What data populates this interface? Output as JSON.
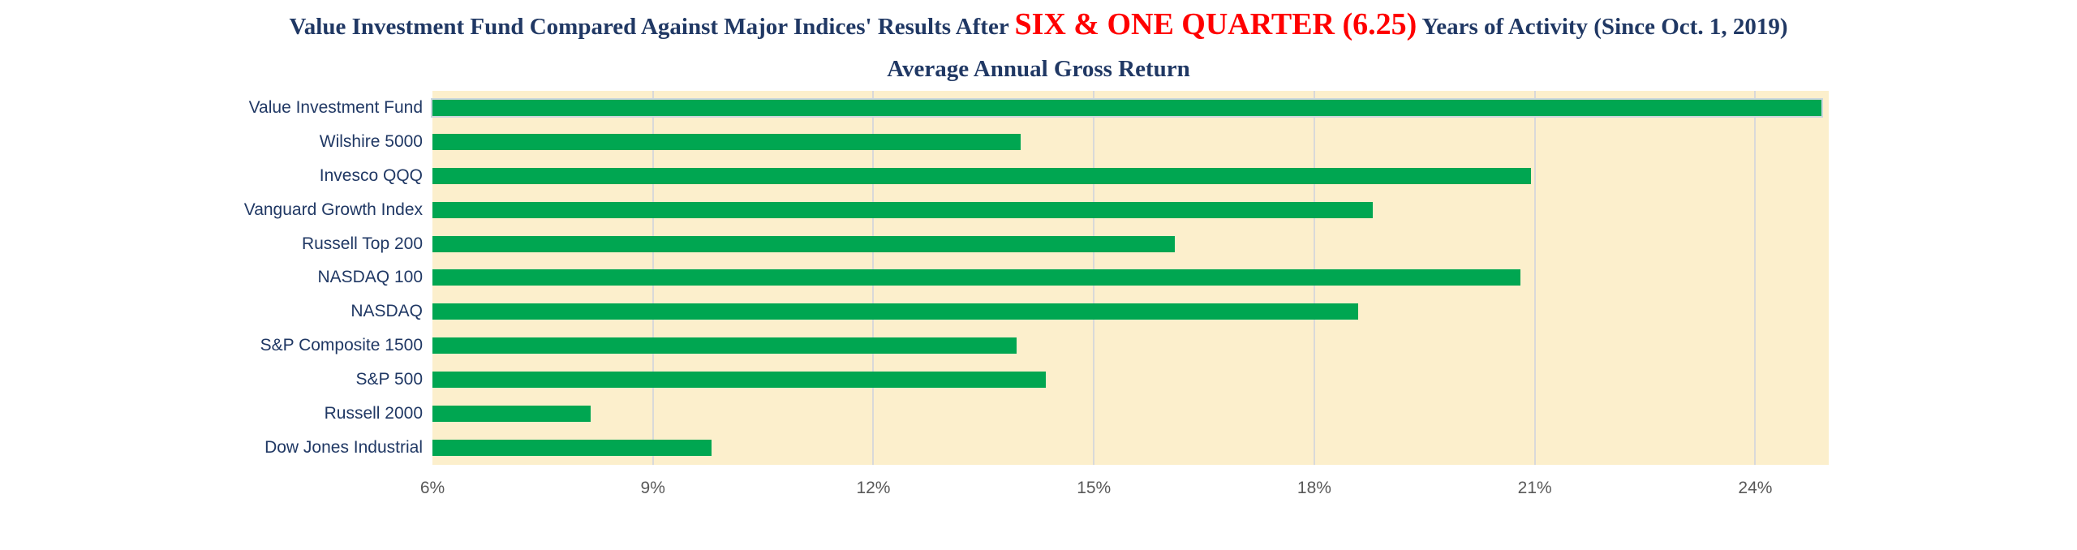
{
  "title": {
    "prefix": "Value Investment Fund Compared Against Major Indices' Results After ",
    "highlight": "SIX & ONE QUARTER (6.25)",
    "suffix": " Years of Activity (Since Oct. 1, 2019)",
    "subtitle": "Average Annual Gross Return"
  },
  "colors": {
    "title_navy": "#203864",
    "highlight_red": "#FF0000",
    "bar_green": "#00A651",
    "first_bar_outline": "#CBD6DD",
    "plot_background": "#FCEFCC",
    "gridline": "#D9D9D9",
    "axis_text_gray": "#595959",
    "category_text_navy": "#203864",
    "page_background": "#FFFFFF"
  },
  "chart_data": {
    "type": "bar",
    "orientation": "horizontal",
    "title": "Value Investment Fund Compared Against Major Indices' Results After SIX & ONE QUARTER (6.25) Years of Activity (Since Oct. 1, 2019)",
    "subtitle": "Average Annual Gross Return",
    "categories": [
      "Value Investment Fund",
      "Wilshire 5000",
      "Invesco QQQ",
      "Vanguard Growth Index",
      "Russell Top 200",
      "NASDAQ 100",
      "NASDAQ",
      "S&P Composite 1500",
      "S&P 500",
      "Russell 2000",
      "Dow Jones Industrial"
    ],
    "values": [
      24.9,
      14.0,
      20.95,
      18.8,
      16.1,
      20.8,
      18.6,
      13.95,
      14.35,
      8.15,
      9.8
    ],
    "unit": "%",
    "xlabel": "",
    "ylabel": "",
    "xlim": [
      6,
      25
    ],
    "xticks": [
      6,
      9,
      12,
      15,
      18,
      21,
      24
    ],
    "xtick_labels": [
      "6%",
      "9%",
      "12%",
      "15%",
      "18%",
      "21%",
      "24%"
    ],
    "grid": "vertical gridlines at each tick except axis minimum",
    "legend": "none"
  }
}
